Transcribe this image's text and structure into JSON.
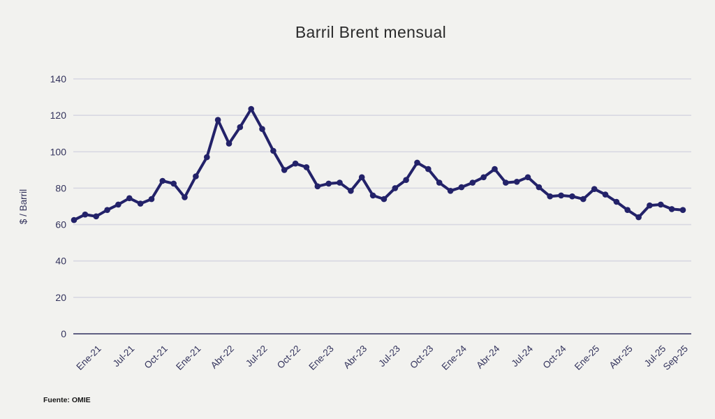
{
  "title": "Barril Brent mensual",
  "source": "Fuente: OMIE",
  "colors": {
    "background": "#f2f2ef",
    "line": "#232269",
    "point": "#232269",
    "grid": "#d8d8e2",
    "axis": "#4b4b72",
    "tick_text": "#33335c",
    "title_text": "#2b2b2b",
    "source_text": "#161616"
  },
  "chart_data": {
    "type": "line",
    "title": "Barril Brent mensual",
    "xlabel": "",
    "ylabel": "$ / Barril",
    "ylim": [
      0,
      140
    ],
    "y_ticks": [
      0,
      20,
      40,
      60,
      80,
      100,
      120,
      140
    ],
    "grid": "horizontal",
    "legend": "none",
    "x_tick_labels": [
      "Ene-21",
      "Jul-21",
      "Oct-21",
      "Ene-21",
      "Abr-22",
      "Jul-22",
      "Oct-22",
      "Ene-23",
      "Abr-23",
      "Jul-23",
      "Oct-23",
      "Ene-24",
      "Abr-24",
      "Jul-24",
      "Oct-24",
      "Ene-25",
      "Abr-25",
      "Jul-25",
      "Sep-25"
    ],
    "x_tick_indices": [
      2,
      5,
      8,
      11,
      14,
      17,
      20,
      23,
      26,
      29,
      32,
      35,
      38,
      41,
      44,
      47,
      50,
      53,
      55
    ],
    "values": [
      62.5,
      65.5,
      64.5,
      68,
      71,
      74.5,
      71.5,
      74,
      84,
      82.5,
      75,
      86.5,
      97,
      117.5,
      104.5,
      113.5,
      123.5,
      112.5,
      100.5,
      90,
      93.5,
      91.5,
      81,
      82.5,
      83,
      78.5,
      86,
      76,
      74,
      80,
      84.5,
      94,
      90.5,
      83,
      78.5,
      80.5,
      83,
      86,
      90.5,
      83,
      83.5,
      86,
      80.5,
      75.5,
      76,
      75.5,
      74,
      79.5,
      76.5,
      72.5,
      68,
      64,
      70.5,
      71,
      68.5,
      68
    ]
  }
}
